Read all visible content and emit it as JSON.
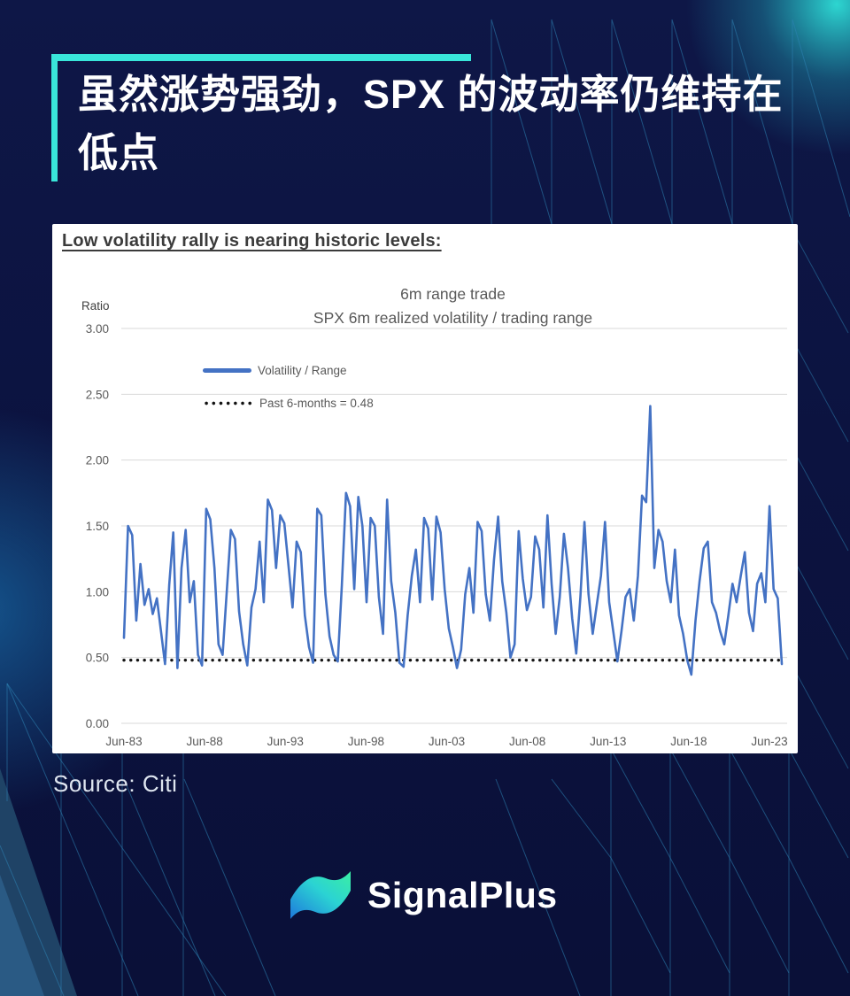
{
  "theme": {
    "background_navy": "#0c1340",
    "accent_cyan": "#39e6da",
    "series_blue": "#4472C4",
    "panel_white": "#ffffff",
    "gridline_gray": "#d9d9d9",
    "axis_text_gray": "#595959"
  },
  "header": {
    "title": "虽然涨势强劲，SPX 的波动率仍维持在低点",
    "title_lines": [
      "虽然涨势强劲，SPX 的波动率仍维持在",
      "低点"
    ]
  },
  "panel": {
    "heading": "Low volatility rally is nearing historic levels:",
    "y_axis_label": "Ratio",
    "legend": [
      {
        "label": "Volatility / Range",
        "type": "line",
        "color": "#4472C4"
      },
      {
        "label": "Past 6-months = 0.48",
        "type": "dotted",
        "color": "#141414"
      }
    ]
  },
  "source": {
    "label": "Source: Citi"
  },
  "logo": {
    "text": "SignalPlus",
    "mark": "wave-gradient-mark"
  },
  "chart_data": {
    "type": "line",
    "title": "6m range trade",
    "subtitle": "SPX 6m realized volatility / trading range",
    "xlabel": "",
    "ylabel": "Ratio",
    "ylim": [
      0,
      3
    ],
    "grid": true,
    "legend_position": "upper-left-inside",
    "y_ticks": [
      {
        "value": 3.0,
        "label": "3.00"
      },
      {
        "value": 2.5,
        "label": "2.50"
      },
      {
        "value": 2.0,
        "label": "2.00"
      },
      {
        "value": 1.5,
        "label": "1.50"
      },
      {
        "value": 1.0,
        "label": "1.00"
      },
      {
        "value": 0.5,
        "label": "0.50"
      },
      {
        "value": 0.0,
        "label": "0.00"
      }
    ],
    "x_ticks": [
      "Jun-83",
      "Jun-88",
      "Jun-93",
      "Jun-98",
      "Jun-03",
      "Jun-08",
      "Jun-13",
      "Jun-18",
      "Jun-23"
    ],
    "x_start_year": 1983.5,
    "x_step_years": 0.25,
    "reference_line": {
      "name": "Past 6-months = 0.48",
      "value": 0.48,
      "style": "dotted",
      "color": "#141414"
    },
    "series": [
      {
        "name": "Volatility / Range",
        "color": "#4472C4",
        "values": [
          0.65,
          1.5,
          1.43,
          0.78,
          1.21,
          0.9,
          1.02,
          0.83,
          0.95,
          0.7,
          0.45,
          1.05,
          1.45,
          0.42,
          1.18,
          1.47,
          0.92,
          1.08,
          0.52,
          0.44,
          1.63,
          1.55,
          1.18,
          0.6,
          0.52,
          1.0,
          1.47,
          1.4,
          0.85,
          0.6,
          0.44,
          0.88,
          1.02,
          1.38,
          0.92,
          1.7,
          1.62,
          1.18,
          1.58,
          1.52,
          1.2,
          0.88,
          1.38,
          1.3,
          0.82,
          0.58,
          0.46,
          1.63,
          1.58,
          0.98,
          0.66,
          0.52,
          0.47,
          1.05,
          1.75,
          1.65,
          1.02,
          1.72,
          1.5,
          0.92,
          1.56,
          1.5,
          0.96,
          0.68,
          1.7,
          1.08,
          0.84,
          0.46,
          0.43,
          0.82,
          1.12,
          1.32,
          0.92,
          1.56,
          1.48,
          0.94,
          1.57,
          1.45,
          1.02,
          0.72,
          0.58,
          0.42,
          0.56,
          0.98,
          1.18,
          0.84,
          1.53,
          1.46,
          0.98,
          0.78,
          1.24,
          1.57,
          1.08,
          0.84,
          0.5,
          0.6,
          1.46,
          1.1,
          0.86,
          0.96,
          1.42,
          1.32,
          0.88,
          1.58,
          1.06,
          0.68,
          0.96,
          1.44,
          1.18,
          0.8,
          0.53,
          0.96,
          1.53,
          0.98,
          0.68,
          0.9,
          1.12,
          1.53,
          0.92,
          0.7,
          0.47,
          0.7,
          0.96,
          1.02,
          0.78,
          1.12,
          1.73,
          1.68,
          2.41,
          1.18,
          1.47,
          1.38,
          1.08,
          0.92,
          1.32,
          0.82,
          0.68,
          0.48,
          0.37,
          0.78,
          1.08,
          1.33,
          1.38,
          0.92,
          0.84,
          0.7,
          0.6,
          0.82,
          1.06,
          0.92,
          1.12,
          1.3,
          0.84,
          0.7,
          1.06,
          1.14,
          0.92,
          1.65,
          1.02,
          0.95,
          0.45
        ]
      }
    ]
  }
}
